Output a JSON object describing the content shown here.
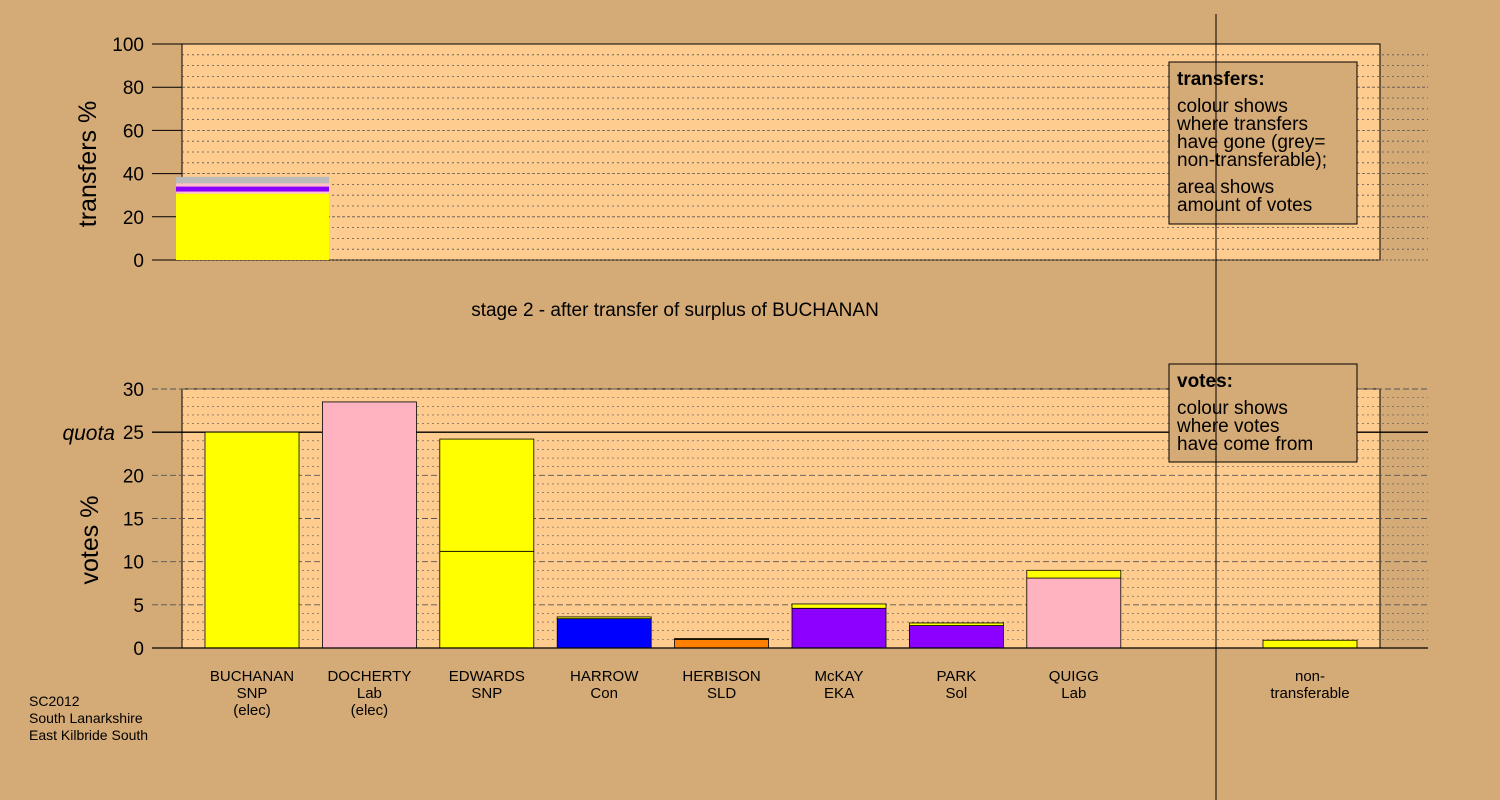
{
  "chart_data": [
    {
      "type": "bar",
      "panel": "transfers",
      "ylabel": "transfers %",
      "ylim": [
        0,
        100
      ],
      "yticks": [
        "0",
        "20",
        "40",
        "60",
        "80",
        "100"
      ],
      "grid": true,
      "bars": [
        {
          "name": "BUCHANAN",
          "segments": [
            {
              "value": 30.7,
              "color": "#ffff00"
            },
            {
              "value": 1.0,
              "color": "#ffc0cb"
            },
            {
              "value": 2.3,
              "color": "#8b00ff"
            },
            {
              "value": 1.5,
              "color": "#ffc0cb"
            },
            {
              "value": 3.0,
              "color": "#bbbbbb"
            }
          ]
        }
      ],
      "legend": {
        "title": "transfers:",
        "lines": [
          "colour shows",
          "where transfers",
          "have gone (grey=",
          "non-transferable);"
        ],
        "lines2": [
          "area shows",
          "amount of votes"
        ]
      }
    },
    {
      "type": "bar",
      "panel": "votes",
      "ylabel": "votes %",
      "ylim": [
        0,
        30
      ],
      "yticks": [
        "0",
        "5",
        "10",
        "15",
        "20",
        "25",
        "30"
      ],
      "quota_label": "quota",
      "quota": 25,
      "grid": true,
      "categories": [
        {
          "name": "BUCHANAN",
          "party": "SNP",
          "status": "(elec)",
          "segments": [
            {
              "value": 25.0,
              "color": "#ffff00"
            }
          ]
        },
        {
          "name": "DOCHERTY",
          "party": "Lab",
          "status": "(elec)",
          "segments": [
            {
              "value": 28.5,
              "color": "#ffb3c1"
            }
          ]
        },
        {
          "name": "EDWARDS",
          "party": "SNP",
          "status": "",
          "segments": [
            {
              "value": 11.2,
              "color": "#ffff00"
            },
            {
              "value": 13.0,
              "color": "#ffff00"
            }
          ]
        },
        {
          "name": "HARROW",
          "party": "Con",
          "status": "",
          "segments": [
            {
              "value": 3.4,
              "color": "#0000ff"
            },
            {
              "value": 0.2,
              "color": "#ffff00"
            }
          ]
        },
        {
          "name": "HERBISON",
          "party": "SLD",
          "status": "",
          "segments": [
            {
              "value": 1.0,
              "color": "#ff8000"
            },
            {
              "value": 0.1,
              "color": "#ffff00"
            }
          ]
        },
        {
          "name": "McKAY",
          "party": "EKA",
          "status": "",
          "segments": [
            {
              "value": 4.6,
              "color": "#8b00ff"
            },
            {
              "value": 0.5,
              "color": "#ffff00"
            }
          ]
        },
        {
          "name": "PARK",
          "party": "Sol",
          "status": "",
          "segments": [
            {
              "value": 2.6,
              "color": "#8b00ff"
            },
            {
              "value": 0.3,
              "color": "#ffff00"
            }
          ]
        },
        {
          "name": "QUIGG",
          "party": "Lab",
          "status": "",
          "segments": [
            {
              "value": 8.1,
              "color": "#ffb3c1"
            },
            {
              "value": 0.9,
              "color": "#ffff00"
            }
          ]
        }
      ],
      "nontransferable": {
        "label1": "non-",
        "label2": "transferable",
        "segments": [
          {
            "value": 0.9,
            "color": "#ffff00"
          }
        ]
      },
      "legend": {
        "title": "votes:",
        "lines": [
          "colour shows",
          "where votes",
          "have come from"
        ]
      }
    }
  ],
  "stage_caption": "stage 2 - after transfer of surplus of BUCHANAN",
  "footer": [
    "SC2012",
    "South Lanarkshire",
    "East Kilbride South"
  ],
  "colors": {
    "background": "#d4aa76",
    "plot_background": "#ffcc8f",
    "legend_background": "#d4aa76"
  }
}
